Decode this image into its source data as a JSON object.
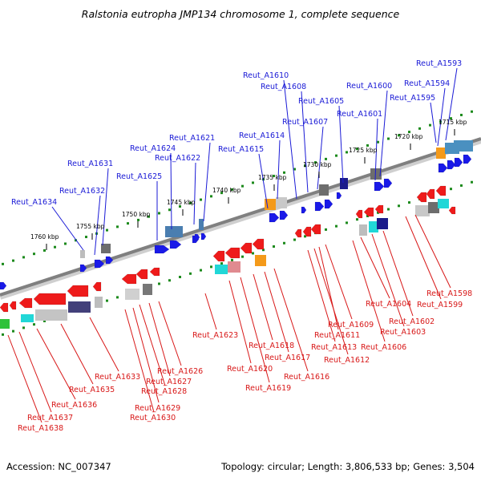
{
  "title": "Ralstonia eutropha JMP134 chromosome 1, complete sequence",
  "footer": {
    "accession": "Accession: NC_007347",
    "summary": "Topology: circular; Length: 3,806,533 bp; Genes: 3,504"
  },
  "colors": {
    "plus_strand_label": "#1a1ad6",
    "minus_strand_label": "#d81818",
    "plus_gene": "#1a1ae8",
    "minus_gene": "#ee1b1b",
    "backbone": "#808080",
    "ruler_dots": "#1c8a1c"
  },
  "kbp_labels": [
    "1760 kbp",
    "1755 kbp",
    "1750 kbp",
    "1745 kbp",
    "1740 kbp",
    "1735 kbp",
    "1730 kbp",
    "1725 kbp",
    "1720 kbp",
    "1715 kbp"
  ],
  "plus_labels": [
    "Reut_A1593",
    "Reut_A1594",
    "Reut_A1595",
    "Reut_A1600",
    "Reut_A1601",
    "Reut_A1605",
    "Reut_A1607",
    "Reut_A1608",
    "Reut_A1610",
    "Reut_A1614",
    "Reut_A1615",
    "Reut_A1621",
    "Reut_A1622",
    "Reut_A1624",
    "Reut_A1625",
    "Reut_A1631",
    "Reut_A1632",
    "Reut_A1634"
  ],
  "minus_labels": [
    "Reut_A1598",
    "Reut_A1599",
    "Reut_A1602",
    "Reut_A1603",
    "Reut_A1604",
    "Reut_A1606",
    "Reut_A1609",
    "Reut_A1611",
    "Reut_A1612",
    "Reut_A1613",
    "Reut_A1616",
    "Reut_A1617",
    "Reut_A1618",
    "Reut_A1619",
    "Reut_A1620",
    "Reut_A1623",
    "Reut_A1626",
    "Reut_A1627",
    "Reut_A1628",
    "Reut_A1629",
    "Reut_A1630",
    "Reut_A1633",
    "Reut_A1635",
    "Reut_A1636",
    "Reut_A1637",
    "Reut_A1638"
  ]
}
